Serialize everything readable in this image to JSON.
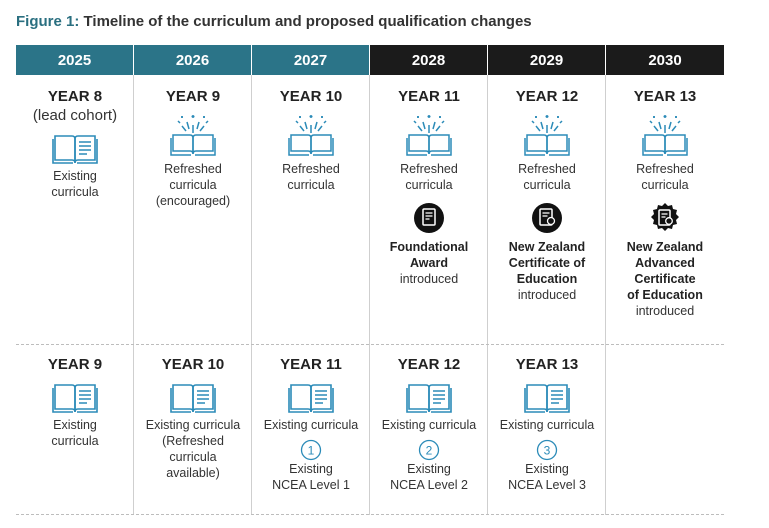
{
  "title": {
    "figure": "Figure 1:",
    "text": "Timeline of the curriculum and proposed qualification changes"
  },
  "years": [
    "2025",
    "2026",
    "2027",
    "2028",
    "2029",
    "2030"
  ],
  "top": [
    {
      "year": "YEAR 8",
      "sub": "(lead cohort)",
      "lines": [
        "Existing",
        "curricula"
      ]
    },
    {
      "year": "YEAR 9",
      "lines": [
        "Refreshed",
        "curricula",
        "(encouraged)"
      ]
    },
    {
      "year": "YEAR 10",
      "lines": [
        "Refreshed",
        "curricula"
      ]
    },
    {
      "year": "YEAR 11",
      "lines": [
        "Refreshed",
        "curricula"
      ],
      "badge": [
        "Foundational",
        "Award"
      ],
      "badge_note": "introduced"
    },
    {
      "year": "YEAR 12",
      "lines": [
        "Refreshed",
        "curricula"
      ],
      "badge": [
        "New Zealand",
        "Certificate of",
        "Education"
      ],
      "badge_note": "introduced"
    },
    {
      "year": "YEAR 13",
      "lines": [
        "Refreshed",
        "curricula"
      ],
      "badge": [
        "New Zealand",
        "Advanced",
        "Certificate",
        "of Education"
      ],
      "badge_note": "introduced"
    }
  ],
  "bottom": [
    {
      "year": "YEAR 9",
      "lines": [
        "Existing",
        "curricula"
      ]
    },
    {
      "year": "YEAR 10",
      "lines": [
        "Existing curricula",
        "(Refreshed",
        "curricula",
        "available)"
      ]
    },
    {
      "year": "YEAR 11",
      "lines": [
        "Existing curricula"
      ],
      "level_num": "1",
      "level": [
        "Existing",
        "NCEA Level 1"
      ]
    },
    {
      "year": "YEAR 12",
      "lines": [
        "Existing curricula"
      ],
      "level_num": "2",
      "level": [
        "Existing",
        "NCEA Level 2"
      ]
    },
    {
      "year": "YEAR 13",
      "lines": [
        "Existing curricula"
      ],
      "level_num": "3",
      "level": [
        "Existing",
        "NCEA Level 3"
      ]
    }
  ]
}
